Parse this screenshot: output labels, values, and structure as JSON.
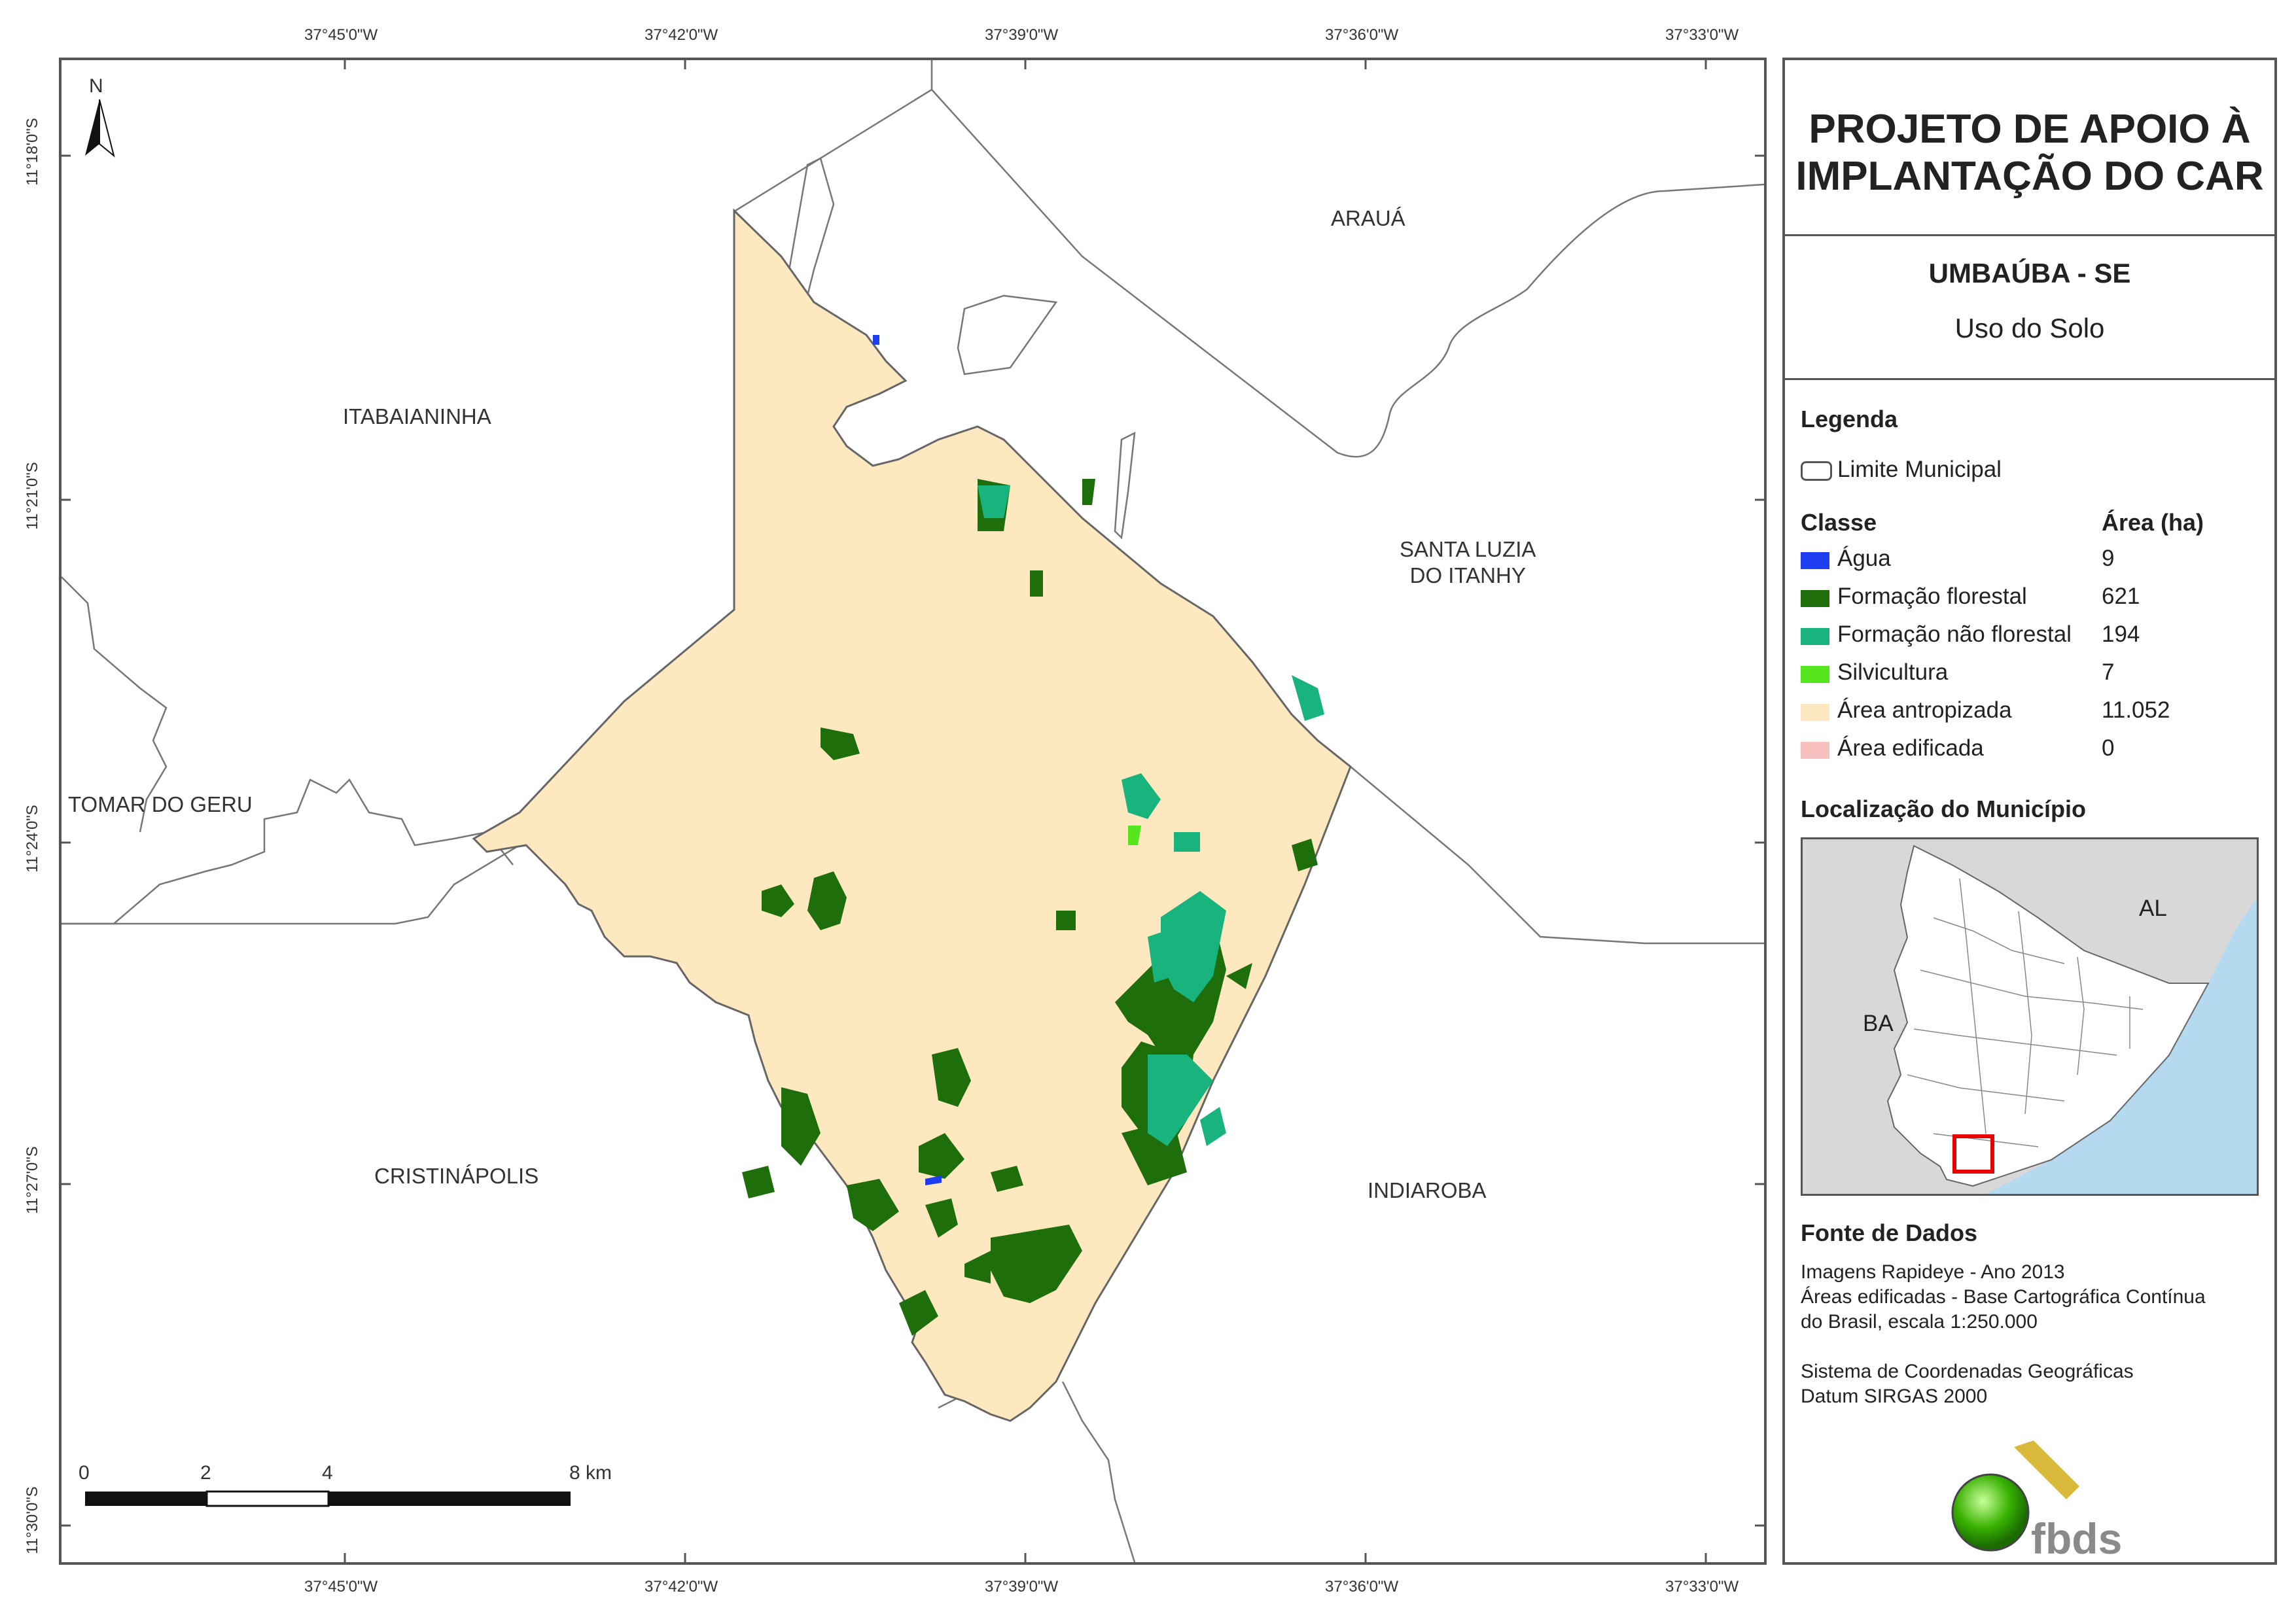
{
  "map": {
    "lon_ticks": [
      "37°45'0\"W",
      "37°42'0\"W",
      "37°39'0\"W",
      "37°36'0\"W",
      "37°33'0\"W"
    ],
    "lat_ticks": [
      "11°18'0\"S",
      "11°21'0\"S",
      "11°24'0\"S",
      "11°27'0\"S",
      "11°30'0\"S"
    ],
    "north_label": "N",
    "municipalities": {
      "araua": "ARAUÁ",
      "itabaianinha": "ITABAIANINHA",
      "santa_luzia_1": "SANTA LUZIA",
      "santa_luzia_2": "DO ITANHY",
      "tomar_do_geru": "TOMAR DO GERU",
      "cristinapolis": "CRISTINÁPOLIS",
      "indiaroba": "INDIAROBA"
    },
    "scale_labels": [
      "0",
      "2",
      "4",
      "8 km"
    ],
    "colors": {
      "antropizada": "#fde8c0",
      "florestal": "#1e6e0b",
      "nao_florestal": "#19b47e",
      "silvicultura": "#56e61e",
      "agua": "#1e3cf0",
      "boundary": "#666666"
    }
  },
  "panel": {
    "title_line1": "PROJETO DE APOIO À",
    "title_line2": "IMPLANTAÇÃO DO CAR",
    "municipality": "UMBAÚBA - SE",
    "theme": "Uso do Solo",
    "legend_heading": "Legenda",
    "limit_label": "Limite Municipal",
    "class_heading": "Classe",
    "area_heading": "Área (ha)",
    "classes": [
      {
        "label": "Água",
        "area": "9",
        "color": "#1e3cf0"
      },
      {
        "label": "Formação florestal",
        "area": "621",
        "color": "#1e6e0b"
      },
      {
        "label": "Formação não florestal",
        "area": "194",
        "color": "#19b47e"
      },
      {
        "label": "Silvicultura",
        "area": "7",
        "color": "#56e61e"
      },
      {
        "label": "Área antropizada",
        "area": "11.052",
        "color": "#fde8c0"
      },
      {
        "label": "Área edificada",
        "area": "0",
        "color": "#f9c0c0"
      }
    ],
    "location_heading": "Localização do Município",
    "inset_labels": {
      "al": "AL",
      "ba": "BA"
    },
    "source_heading": "Fonte de Dados",
    "source_lines": [
      "Imagens Rapideye - Ano 2013",
      "Áreas edificadas - Base Cartográfica Contínua",
      "do Brasil, escala 1:250.000"
    ],
    "crs_lines": [
      "Sistema de Coordenadas Geográficas",
      "Datum SIRGAS 2000"
    ],
    "logo_text": "fbds"
  }
}
